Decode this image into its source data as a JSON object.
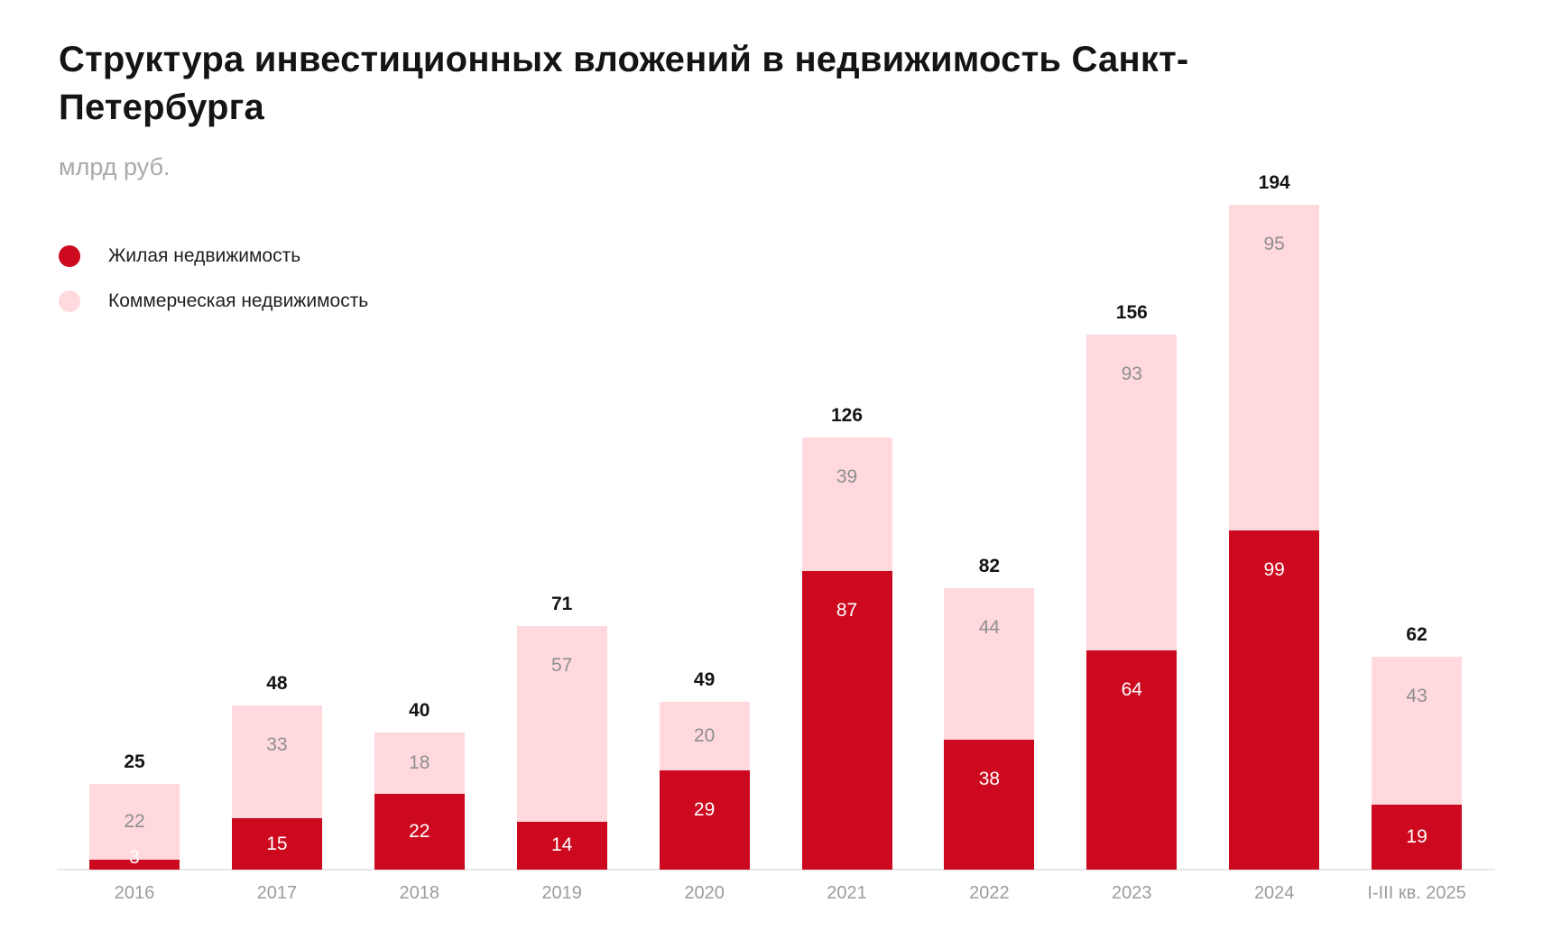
{
  "chart_data": {
    "type": "bar",
    "stacked": true,
    "title": "Структура инвестиционных вложений в недвижимость Санкт-Петербурга",
    "subtitle": "млрд руб.",
    "ylabel": "млрд руб.",
    "xlabel": "",
    "grid": false,
    "legend_position": "top-left",
    "value_labels": "inside",
    "categories": [
      "2016",
      "2017",
      "2018",
      "2019",
      "2020",
      "2021",
      "2022",
      "2023",
      "2024",
      "I-III кв. 2025"
    ],
    "series": [
      {
        "name": "Жилая недвижимость",
        "color": "#CD091F",
        "values": [
          3,
          15,
          22,
          14,
          29,
          87,
          38,
          64,
          99,
          19
        ]
      },
      {
        "name": "Коммерческая недвижимость",
        "color": "#FFD9DD",
        "values": [
          22,
          33,
          18,
          57,
          20,
          39,
          44,
          93,
          95,
          43
        ]
      }
    ],
    "totals": [
      25,
      48,
      40,
      71,
      49,
      126,
      82,
      156,
      194,
      62
    ],
    "colors": {
      "title": "#141414",
      "subtitle": "#A9A9A9",
      "total_label": "#141414",
      "inside_label_commercial": "#8E8E8E",
      "inside_label_residential": "#FFFFFF",
      "axis_label": "#9C9C9C",
      "axis_line": "#E7E7E7",
      "background": "#FFFFFF"
    }
  }
}
